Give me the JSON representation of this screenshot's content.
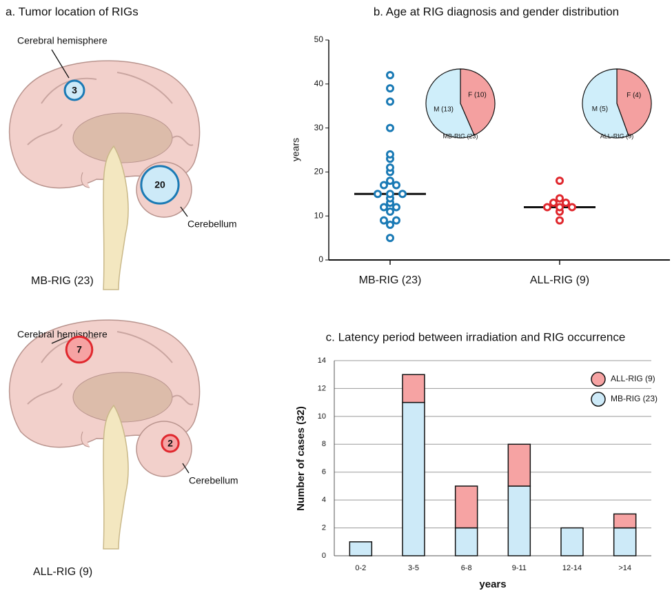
{
  "brain_panel": {
    "title": "a. Tumor location of RIGs",
    "brains": [
      {
        "caption": "MB-RIG (23)",
        "color": "#1a7ab5",
        "fill": "#cdeaf8",
        "locations": [
          {
            "label": "Cerebral hemisphere",
            "count": 3
          },
          {
            "label": "Cerebellum",
            "count": 20
          }
        ]
      },
      {
        "caption": "ALL-RIG (9)",
        "color": "#e0282e",
        "fill": "#f6a3a3",
        "locations": [
          {
            "label": "Cerebral hemisphere",
            "count": 7
          },
          {
            "label": "Cerebellum",
            "count": 2
          }
        ]
      }
    ]
  },
  "chart_data": [
    {
      "type": "strip",
      "title": "b. Age at RIG diagnosis and gender distribution",
      "ylabel": "years",
      "categories": [
        "MB-RIG (23)",
        "ALL-RIG (9)"
      ],
      "series": [
        {
          "name": "MB-RIG (23)",
          "color": "#1a7ab5",
          "values": [
            42,
            39,
            36,
            30,
            24,
            23,
            21,
            20,
            18,
            17,
            17,
            15,
            15,
            15,
            14,
            13,
            12,
            12,
            11,
            9,
            9,
            8,
            5
          ],
          "median": 15
        },
        {
          "name": "ALL-RIG (9)",
          "color": "#e0282e",
          "values": [
            18,
            14,
            13,
            13,
            12,
            12,
            12,
            11,
            9
          ],
          "median": 12
        }
      ],
      "ylim": [
        0,
        50
      ],
      "yticks": [
        0,
        10,
        20,
        30,
        40,
        50
      ]
    },
    {
      "type": "pie",
      "title": "MB-RIG (23)",
      "values": [
        13,
        10
      ],
      "value_labels": [
        "M (13)",
        "F (10)"
      ],
      "colors": [
        "#cfeefa",
        "#f4a0a0"
      ]
    },
    {
      "type": "pie",
      "title": "ALL-RIG (9)",
      "values": [
        5,
        4
      ],
      "value_labels": [
        "M (5)",
        "F (4)"
      ],
      "colors": [
        "#cfeefa",
        "#f4a0a0"
      ]
    },
    {
      "type": "stacked_bar",
      "title": "c. Latency period between irradiation and RIG occurrence",
      "xlabel": "years",
      "ylabel": "Number of cases (32)",
      "categories": [
        "0-2",
        "3-5",
        "6-8",
        "9-11",
        "12-14",
        ">14"
      ],
      "series": [
        {
          "name": "MB-RIG (23)",
          "color": "#cdeaf8",
          "values": [
            1,
            11,
            2,
            5,
            2,
            2
          ]
        },
        {
          "name": "ALL-RIG (9)",
          "color": "#f6a3a3",
          "values": [
            0,
            2,
            3,
            3,
            0,
            1
          ]
        }
      ],
      "ylim": [
        0,
        14
      ],
      "yticks": [
        0,
        2,
        4,
        6,
        8,
        10,
        12,
        14
      ],
      "grid": true
    }
  ]
}
